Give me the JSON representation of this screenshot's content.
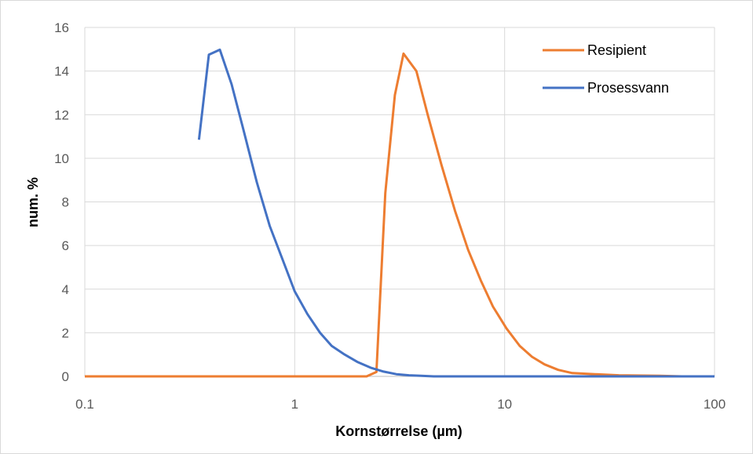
{
  "chart_data": {
    "type": "line",
    "xlabel": "Kornstørrelse (µm)",
    "ylabel": "num. %",
    "x_scale": "log",
    "xlim": [
      0.1,
      100
    ],
    "ylim": [
      0,
      16
    ],
    "x_ticks": [
      "0.1",
      "1",
      "10",
      "100"
    ],
    "y_ticks": [
      "0",
      "2",
      "4",
      "6",
      "8",
      "10",
      "12",
      "14",
      "16"
    ],
    "grid": true,
    "legend_position": "top-right",
    "series": [
      {
        "name": "Resipient",
        "color": "#ED7D31",
        "points": [
          [
            0.1,
            0
          ],
          [
            1,
            0
          ],
          [
            2.2,
            0
          ],
          [
            2.45,
            0.2
          ],
          [
            2.7,
            8.4
          ],
          [
            3.0,
            12.9
          ],
          [
            3.3,
            14.8
          ],
          [
            3.8,
            14.0
          ],
          [
            4.3,
            12.0
          ],
          [
            5.0,
            9.7
          ],
          [
            5.8,
            7.6
          ],
          [
            6.7,
            5.8
          ],
          [
            7.7,
            4.4
          ],
          [
            8.8,
            3.2
          ],
          [
            10.2,
            2.2
          ],
          [
            11.8,
            1.4
          ],
          [
            13.5,
            0.9
          ],
          [
            15.5,
            0.55
          ],
          [
            18,
            0.3
          ],
          [
            21,
            0.15
          ],
          [
            27,
            0.1
          ],
          [
            35,
            0.05
          ],
          [
            55,
            0.03
          ],
          [
            70,
            0
          ],
          [
            100,
            0
          ]
        ]
      },
      {
        "name": "Prosessvann",
        "color": "#4472C4",
        "points": [
          [
            0.35,
            10.85
          ],
          [
            0.39,
            14.75
          ],
          [
            0.44,
            14.98
          ],
          [
            0.5,
            13.4
          ],
          [
            0.57,
            11.3
          ],
          [
            0.66,
            8.9
          ],
          [
            0.76,
            6.9
          ],
          [
            0.88,
            5.3
          ],
          [
            1.0,
            3.9
          ],
          [
            1.15,
            2.85
          ],
          [
            1.32,
            2.0
          ],
          [
            1.5,
            1.4
          ],
          [
            1.73,
            1.0
          ],
          [
            2.0,
            0.65
          ],
          [
            2.3,
            0.4
          ],
          [
            2.65,
            0.22
          ],
          [
            3.05,
            0.1
          ],
          [
            3.5,
            0.05
          ],
          [
            4.0,
            0.03
          ],
          [
            4.6,
            0
          ],
          [
            10,
            0
          ],
          [
            100,
            0
          ]
        ]
      }
    ]
  }
}
